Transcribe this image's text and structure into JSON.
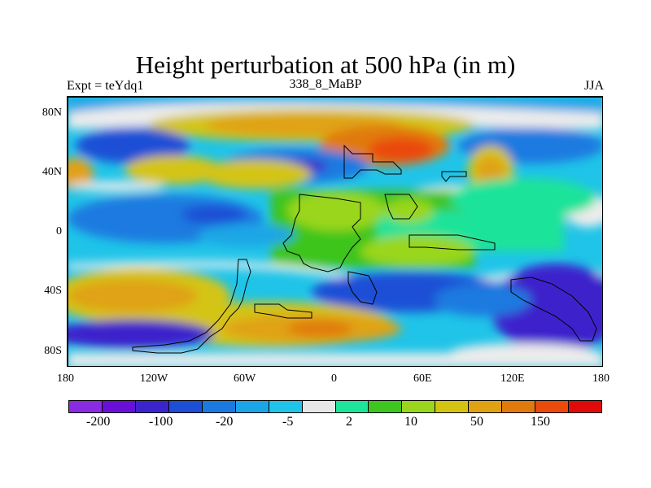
{
  "title": "Height perturbation at 500 hPa (in m)",
  "left_label": "Expt = teYdq1",
  "center_label": "338_8_MaBP",
  "right_label": "JJA",
  "x_ticks": [
    "180",
    "120W",
    "60W",
    "0",
    "60E",
    "120E",
    "180"
  ],
  "y_ticks": [
    "80N",
    "40N",
    "0",
    "40S",
    "80S"
  ],
  "colorbar": {
    "colors": [
      "#8a2be2",
      "#6a0fd8",
      "#3c24cc",
      "#1c4fd6",
      "#1a7ae0",
      "#1aa6e6",
      "#1fc4e8",
      "#e6e6e6",
      "#1ee39a",
      "#3ec51f",
      "#9ad61e",
      "#d4c412",
      "#e0a212",
      "#e07a0c",
      "#ea4a0a",
      "#e00a0a"
    ],
    "labels": [
      "-200",
      "-100",
      "-20",
      "-5",
      "2",
      "10",
      "50",
      "150"
    ]
  },
  "chart_data": {
    "type": "heatmap",
    "title": "Height perturbation at 500 hPa (in m)",
    "xlabel": "",
    "ylabel": "",
    "xlim": [
      -180,
      180
    ],
    "ylim": [
      -90,
      90
    ],
    "contour_levels": [
      -200,
      -100,
      -20,
      -5,
      2,
      10,
      50,
      150
    ],
    "season": "JJA",
    "experiment": "teYdq1",
    "period": "338_8_MaBP"
  }
}
